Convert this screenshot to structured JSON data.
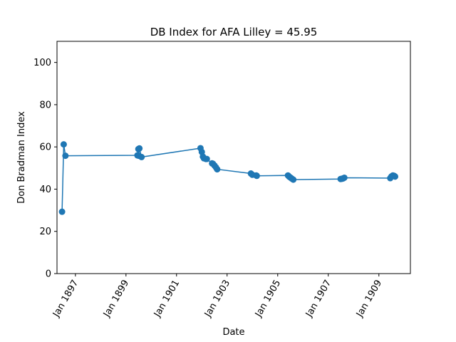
{
  "chart_data": {
    "type": "line",
    "title": "DB Index for AFA Lilley = 45.95",
    "xlabel": "Date",
    "ylabel": "Don Bradman Index",
    "ylim": [
      0,
      110
    ],
    "xlim": [
      "1896-04-10",
      "1910-04-01"
    ],
    "grid": false,
    "color": "#1f77b4",
    "yticks": [
      0,
      20,
      40,
      60,
      80,
      100
    ],
    "xticks": [
      {
        "date": "1897-01-01",
        "label": "Jan 1897"
      },
      {
        "date": "1899-01-01",
        "label": "Jan 1899"
      },
      {
        "date": "1901-01-01",
        "label": "Jan 1901"
      },
      {
        "date": "1903-01-01",
        "label": "Jan 1903"
      },
      {
        "date": "1905-01-01",
        "label": "Jan 1905"
      },
      {
        "date": "1907-01-01",
        "label": "Jan 1907"
      },
      {
        "date": "1909-01-01",
        "label": "Jan 1909"
      }
    ],
    "series": [
      {
        "points": [
          {
            "x": "1896-06-22",
            "y": 29.3
          },
          {
            "x": "1896-07-16",
            "y": 61.2
          },
          {
            "x": "1896-08-10",
            "y": 55.8
          },
          {
            "x": "1899-06-15",
            "y": 56.0
          },
          {
            "x": "1899-06-29",
            "y": 59.0
          },
          {
            "x": "1899-07-03",
            "y": 55.8
          },
          {
            "x": "1899-07-14",
            "y": 59.3
          },
          {
            "x": "1899-08-14",
            "y": 55.2
          },
          {
            "x": "1901-12-13",
            "y": 59.4
          },
          {
            "x": "1902-01-01",
            "y": 57.6
          },
          {
            "x": "1902-01-17",
            "y": 55.4
          },
          {
            "x": "1902-01-31",
            "y": 54.6
          },
          {
            "x": "1902-02-28",
            "y": 54.3
          },
          {
            "x": "1902-03-14",
            "y": 54.3
          },
          {
            "x": "1902-05-29",
            "y": 52.2
          },
          {
            "x": "1902-06-12",
            "y": 52.0
          },
          {
            "x": "1902-07-03",
            "y": 51.2
          },
          {
            "x": "1902-07-24",
            "y": 50.3
          },
          {
            "x": "1902-08-11",
            "y": 49.4
          },
          {
            "x": "1903-12-11",
            "y": 47.4
          },
          {
            "x": "1904-01-01",
            "y": 46.8
          },
          {
            "x": "1904-02-26",
            "y": 46.5
          },
          {
            "x": "1904-03-05",
            "y": 46.3
          },
          {
            "x": "1905-05-29",
            "y": 46.5
          },
          {
            "x": "1905-06-15",
            "y": 45.9
          },
          {
            "x": "1905-07-03",
            "y": 45.5
          },
          {
            "x": "1905-07-24",
            "y": 45.0
          },
          {
            "x": "1905-08-14",
            "y": 44.5
          },
          {
            "x": "1907-06-28",
            "y": 44.8
          },
          {
            "x": "1907-07-17",
            "y": 44.9
          },
          {
            "x": "1907-08-05",
            "y": 45.1
          },
          {
            "x": "1907-08-21",
            "y": 45.4
          },
          {
            "x": "1909-06-14",
            "y": 45.2
          },
          {
            "x": "1909-07-01",
            "y": 46.0
          },
          {
            "x": "1909-07-22",
            "y": 46.5
          },
          {
            "x": "1909-08-09",
            "y": 46.3
          },
          {
            "x": "1909-08-23",
            "y": 45.95
          }
        ]
      }
    ]
  }
}
